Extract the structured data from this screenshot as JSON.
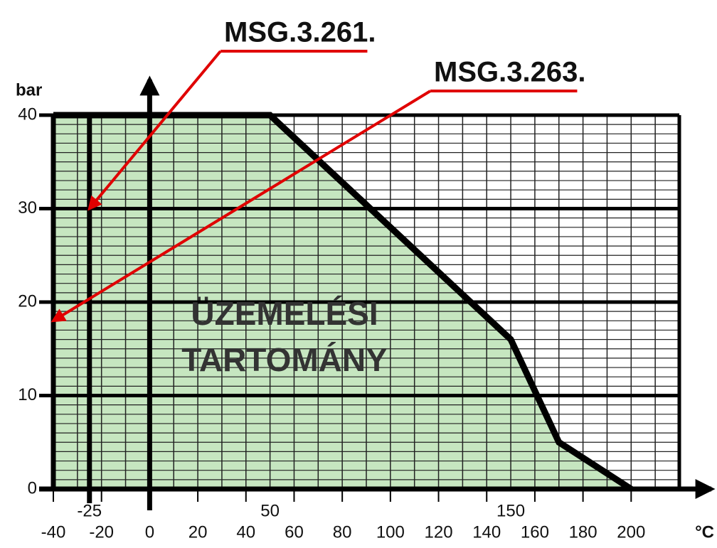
{
  "chart_data": {
    "type": "area",
    "x_label": "°C",
    "y_label": "bar",
    "x": [
      -40,
      50,
      150,
      170,
      200
    ],
    "values": [
      40,
      40,
      16,
      5,
      0
    ],
    "color": "#c6e6c0",
    "line_color": "#000000",
    "xlim": [
      -40,
      220
    ],
    "ylim": [
      0,
      40
    ],
    "xticks": [
      -40,
      -20,
      0,
      20,
      40,
      60,
      80,
      100,
      120,
      140,
      160,
      180,
      200
    ],
    "yticks": [
      0,
      10,
      20,
      30,
      40
    ],
    "marked_xticks": [
      -25,
      50,
      150
    ],
    "reference_line_x": -25,
    "minor_grid": {
      "x": 10,
      "y": 1
    },
    "grid": true,
    "region_label": [
      "ÜZEMELÉSI",
      "TARTOMÁNY"
    ],
    "annotations": [
      {
        "text": "MSG.3.261.",
        "x": -25,
        "y": 30,
        "color": "#e00000"
      },
      {
        "text": "MSG.3.263.",
        "x": -40,
        "y": 18,
        "color": "#e00000"
      }
    ]
  }
}
